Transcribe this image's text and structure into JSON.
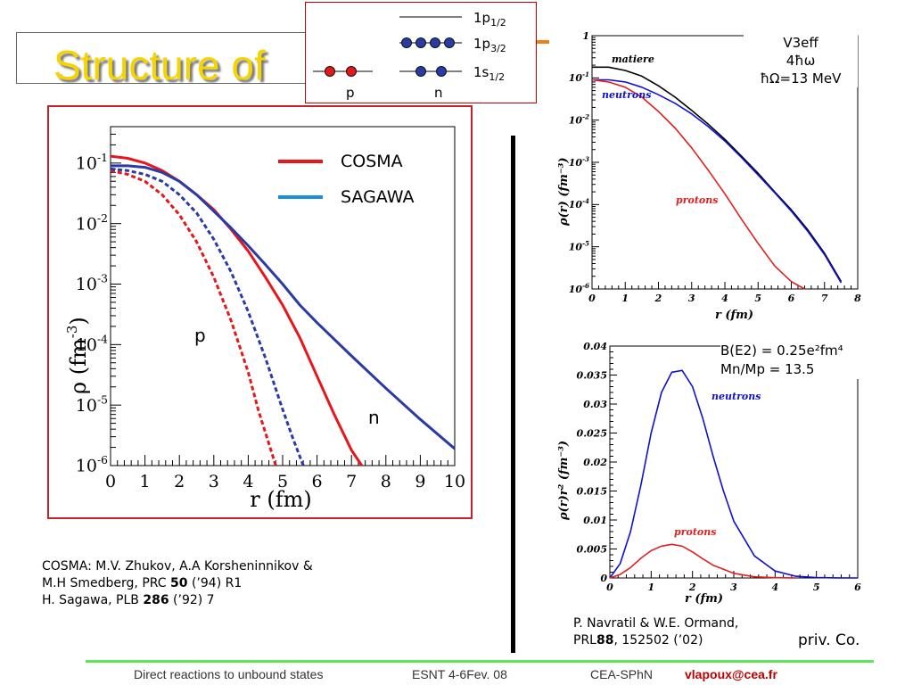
{
  "slide": {
    "title": "Structure of",
    "footer": {
      "talk": "Direct reactions to unbound states",
      "event": "ESNT 4-6Fev. 08",
      "lab": "CEA-SPhN",
      "email": "vlapoux@cea.fr"
    }
  },
  "level_scheme": {
    "levels": [
      {
        "main": "1p",
        "sub": "1/2"
      },
      {
        "main": "1p",
        "sub": "3/2"
      },
      {
        "main": "1s",
        "sub": "1/2"
      }
    ],
    "labels": {
      "protons": "p",
      "neutrons": "n"
    },
    "colors": {
      "proton": "#e8161b",
      "neutron": "#2a3aa6"
    }
  },
  "references_left": {
    "cosma_line1": "COSMA: M.V. Zhukov, A.A Korsheninnikov &",
    "cosma_line2_a": " M.H Smedberg, PRC ",
    "cosma_line2_b": "50",
    "cosma_line2_c": " (’94) R1",
    "sagawa_a": "H. Sagawa,  PLB ",
    "sagawa_b": "286",
    "sagawa_c": " (’92) 7"
  },
  "references_right": {
    "line1": "P. Navratil & W.E. Ormand,",
    "line2_a": "PRL",
    "line2_b": "88",
    "line2_c": ", 152502 (’02)",
    "note": "priv. Co."
  },
  "chart_data": [
    {
      "type": "line",
      "scale": "log-y",
      "xlabel": "r (fm)",
      "ylabel_main": "ρ (fm",
      "ylabel_exp": "-3",
      "ylabel_close": ")",
      "xlim": [
        0,
        10
      ],
      "ylim": [
        1e-06,
        0.4
      ],
      "xticks": [
        "0",
        "1",
        "2",
        "3",
        "4",
        "5",
        "6",
        "7",
        "8",
        "9",
        "10"
      ],
      "yticks": [
        {
          "b": "10",
          "e": "-1"
        },
        {
          "b": "10",
          "e": "-2"
        },
        {
          "b": "10",
          "e": "-3"
        },
        {
          "b": "10",
          "e": "-4"
        },
        {
          "b": "10",
          "e": "-5"
        },
        {
          "b": "10",
          "e": "-6"
        }
      ],
      "legend": [
        "COSMA",
        "SAGAWA"
      ],
      "legend_colors": [
        "#e8161b",
        "#1a8fe0"
      ],
      "annotations": {
        "p": "p",
        "n": "n"
      },
      "series": [
        {
          "name": "COSMA",
          "particle": "n",
          "dashed": false,
          "color": "#e8161b",
          "x": [
            0,
            0.5,
            1,
            1.5,
            2,
            2.5,
            3,
            3.5,
            4,
            4.5,
            5,
            5.5,
            6,
            6.5,
            7,
            7.3
          ],
          "y": [
            0.13,
            0.12,
            0.1,
            0.075,
            0.05,
            0.03,
            0.017,
            0.008,
            0.0035,
            0.0013,
            0.00045,
            0.00013,
            3e-05,
            7e-06,
            1.8e-06,
            1e-06
          ]
        },
        {
          "name": "COSMA",
          "particle": "p",
          "dashed": true,
          "color": "#e8161b",
          "x": [
            0,
            0.5,
            1,
            1.5,
            2,
            2.5,
            3,
            3.5,
            4,
            4.3,
            4.5,
            4.8
          ],
          "y": [
            0.075,
            0.065,
            0.05,
            0.03,
            0.014,
            0.005,
            0.0013,
            0.00025,
            3.5e-05,
            8e-06,
            3.5e-06,
            1e-06
          ]
        },
        {
          "name": "SAGAWA",
          "particle": "n",
          "dashed": false,
          "color": "#2a3aa6",
          "x": [
            0,
            0.5,
            1,
            1.5,
            2,
            2.5,
            3,
            3.5,
            4,
            4.5,
            5,
            5.5,
            6,
            7,
            8,
            9,
            10
          ],
          "y": [
            0.09,
            0.09,
            0.085,
            0.07,
            0.05,
            0.03,
            0.016,
            0.0085,
            0.0043,
            0.0021,
            0.001,
            0.00045,
            0.00023,
            6.5e-05,
            1.9e-05,
            5.8e-06,
            1.9e-06
          ]
        },
        {
          "name": "SAGAWA",
          "particle": "p",
          "dashed": true,
          "color": "#2a3aa6",
          "x": [
            0,
            0.5,
            1,
            1.5,
            2,
            2.5,
            3,
            3.5,
            4,
            4.5,
            5,
            5.3,
            5.6
          ],
          "y": [
            0.08,
            0.075,
            0.065,
            0.05,
            0.03,
            0.015,
            0.0055,
            0.0016,
            0.00035,
            6e-05,
            8.5e-06,
            2.8e-06,
            1e-06
          ]
        }
      ]
    },
    {
      "type": "line",
      "scale": "log-y",
      "title_lines": [
        "V3eff",
        "4ħω",
        "ħΩ=13 MeV"
      ],
      "xlabel": "r (fm)",
      "ylabel": "ρ(r) (fm⁻³)",
      "xlim": [
        0,
        8
      ],
      "ylim": [
        1e-06,
        1
      ],
      "xticks": [
        "0",
        "1",
        "2",
        "3",
        "4",
        "5",
        "6",
        "7",
        "8"
      ],
      "yticks": [
        {
          "b": "1",
          "e": ""
        },
        {
          "b": "10",
          "e": "-1"
        },
        {
          "b": "10",
          "e": "-2"
        },
        {
          "b": "10",
          "e": "-3"
        },
        {
          "b": "10",
          "e": "-4"
        },
        {
          "b": "10",
          "e": "-5"
        },
        {
          "b": "10",
          "e": "-6"
        }
      ],
      "series": [
        {
          "name": "matiere",
          "color": "#000000",
          "x": [
            0,
            0.5,
            1,
            1.5,
            2,
            2.5,
            3,
            3.5,
            4,
            4.5,
            5,
            5.5,
            6,
            6.5,
            7,
            7.5
          ],
          "y": [
            0.18,
            0.18,
            0.15,
            0.11,
            0.065,
            0.035,
            0.017,
            0.008,
            0.0035,
            0.0014,
            0.00055,
            0.0002,
            7.5e-05,
            2.5e-05,
            7e-06,
            1.5e-06
          ]
        },
        {
          "name": "neutrons",
          "color": "#1010d0",
          "x": [
            0,
            0.5,
            1,
            1.5,
            2,
            2.5,
            3,
            3.5,
            4,
            4.5,
            5,
            5.5,
            6,
            6.5,
            7,
            7.5
          ],
          "y": [
            0.09,
            0.09,
            0.08,
            0.06,
            0.04,
            0.025,
            0.014,
            0.007,
            0.0032,
            0.0013,
            0.0005,
            0.00019,
            7e-05,
            2.3e-05,
            6.5e-06,
            1.4e-06
          ]
        },
        {
          "name": "protons",
          "color": "#e02020",
          "x": [
            0,
            0.5,
            1,
            1.5,
            2,
            2.5,
            3,
            3.5,
            4,
            4.5,
            5,
            5.5,
            6,
            6.4
          ],
          "y": [
            0.09,
            0.08,
            0.06,
            0.035,
            0.016,
            0.0065,
            0.0022,
            0.00065,
            0.00018,
            4.5e-05,
            1.2e-05,
            3.5e-06,
            1.5e-06,
            1e-06
          ]
        }
      ]
    },
    {
      "type": "line",
      "title_lines": [
        "B(E2) = 0.25e²fm⁴",
        "Mn/Mp = 13.5"
      ],
      "xlabel": "r (fm)",
      "ylabel": "ρ(r)r² (fm⁻³)",
      "xlim": [
        0,
        6
      ],
      "ylim": [
        0,
        0.04
      ],
      "xticks": [
        "0",
        "1",
        "2",
        "3",
        "4",
        "5",
        "6"
      ],
      "yticks": [
        "0",
        "0.005",
        "0.01",
        "0.015",
        "0.02",
        "0.025",
        "0.03",
        "0.035",
        "0.04"
      ],
      "series": [
        {
          "name": "neutrons",
          "color": "#1010d0",
          "x": [
            0,
            0.25,
            0.5,
            0.75,
            1,
            1.25,
            1.5,
            1.75,
            2,
            2.25,
            2.5,
            2.75,
            3,
            3.5,
            4,
            4.5,
            5,
            5.5,
            6
          ],
          "y": [
            0,
            0.0025,
            0.008,
            0.016,
            0.025,
            0.032,
            0.0355,
            0.0358,
            0.033,
            0.0275,
            0.021,
            0.015,
            0.0098,
            0.0038,
            0.0012,
            0.0003,
            7e-05,
            2e-05,
            0
          ]
        },
        {
          "name": "protons",
          "color": "#e02020",
          "x": [
            0,
            0.25,
            0.5,
            0.75,
            1,
            1.25,
            1.5,
            1.75,
            2,
            2.25,
            2.5,
            3,
            3.5,
            4,
            4.5
          ],
          "y": [
            0,
            0.0006,
            0.0018,
            0.0034,
            0.0047,
            0.0055,
            0.0058,
            0.0055,
            0.0045,
            0.0033,
            0.0022,
            0.0008,
            0.0002,
            5e-05,
            0
          ]
        }
      ]
    }
  ]
}
